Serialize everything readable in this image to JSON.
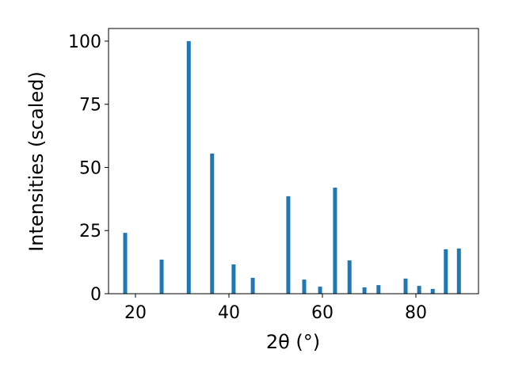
{
  "chart_data": {
    "type": "bar",
    "x_label": "2θ (°)",
    "y_label": "Intensities (scaled)",
    "x": [
      17.8,
      25.6,
      31.4,
      36.4,
      41.0,
      45.1,
      52.7,
      56.1,
      59.5,
      62.7,
      65.8,
      69.0,
      72.0,
      77.8,
      80.7,
      83.6,
      86.4,
      89.2
    ],
    "values": [
      24.1,
      13.5,
      100,
      55.5,
      11.6,
      6.3,
      38.6,
      5.6,
      2.8,
      42.0,
      13.2,
      2.5,
      3.4,
      6.0,
      3.1,
      1.9,
      17.6,
      17.9
    ],
    "color": "#1f77b4",
    "xlim": [
      14.24,
      93.39
    ],
    "xticks": [
      20,
      40,
      60,
      80
    ],
    "ylim": [
      0,
      105
    ],
    "yticks": [
      0,
      25,
      50,
      75,
      100
    ],
    "grid": false
  }
}
